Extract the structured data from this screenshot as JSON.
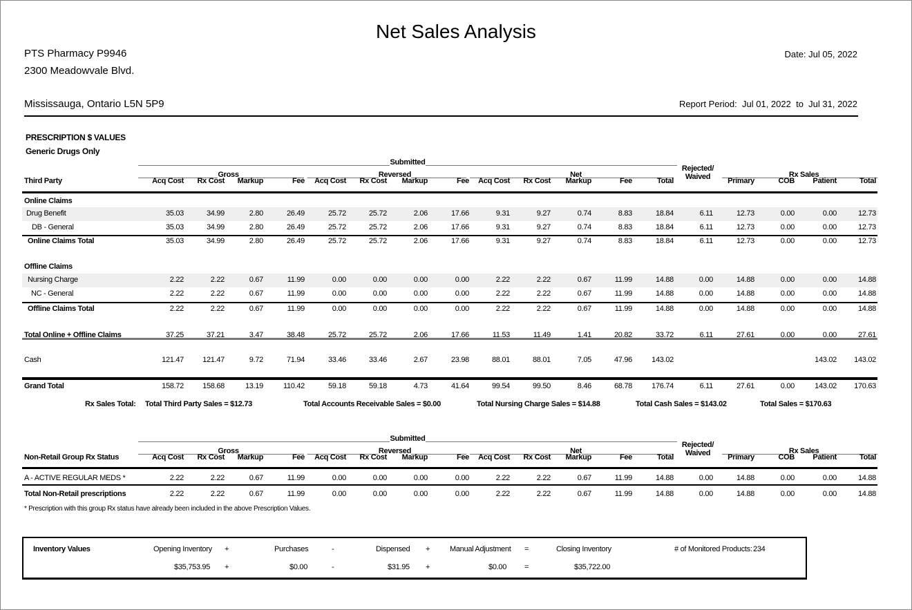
{
  "header": {
    "title": "Net Sales Analysis",
    "pharmacy": "PTS Pharmacy P9946",
    "address1": "2300 Meadowvale Blvd.",
    "address2": "Mississauga, Ontario L5N 5P9",
    "date": "Date: Jul 05, 2022",
    "period_label": "Report Period:",
    "period_from": "Jul 01, 2022",
    "period_to_word": "to",
    "period_to": "Jul 31, 2022"
  },
  "section": {
    "title": "PRESCRIPTION $ VALUES",
    "subtitle": "Generic Drugs Only"
  },
  "groups": {
    "submitted": "Submitted",
    "gross": "Gross",
    "reversed": "Reversed",
    "net": "Net",
    "rejected": "Rejected/",
    "waived": "Waived",
    "rx_sales": "Rx Sales"
  },
  "columns": [
    "Acq Cost",
    "Rx Cost",
    "Markup",
    "Fee",
    "Acq Cost",
    "Rx Cost",
    "Markup",
    "Fee",
    "Acq Cost",
    "Rx Cost",
    "Markup",
    "Fee",
    "Total",
    "",
    "Primary",
    "COB",
    "Patient",
    "Total"
  ],
  "table1": {
    "first_col": "Third Party",
    "rows": [
      {
        "label": "Online Claims",
        "values": []
      },
      {
        "label": "Drug Benefit",
        "values": [
          "35.03",
          "34.99",
          "2.80",
          "26.49",
          "25.72",
          "25.72",
          "2.06",
          "17.66",
          "9.31",
          "9.27",
          "0.74",
          "8.83",
          "18.84",
          "6.11",
          "12.73",
          "0.00",
          "0.00",
          "12.73"
        ]
      },
      {
        "label": "DB - General",
        "values": [
          "35.03",
          "34.99",
          "2.80",
          "26.49",
          "25.72",
          "25.72",
          "2.06",
          "17.66",
          "9.31",
          "9.27",
          "0.74",
          "8.83",
          "18.84",
          "6.11",
          "12.73",
          "0.00",
          "0.00",
          "12.73"
        ]
      },
      {
        "label": "Online Claims Total",
        "values": [
          "35.03",
          "34.99",
          "2.80",
          "26.49",
          "25.72",
          "25.72",
          "2.06",
          "17.66",
          "9.31",
          "9.27",
          "0.74",
          "8.83",
          "18.84",
          "6.11",
          "12.73",
          "0.00",
          "0.00",
          "12.73"
        ]
      },
      {
        "label": "Offline Claims",
        "values": []
      },
      {
        "label": "Nursing Charge",
        "values": [
          "2.22",
          "2.22",
          "0.67",
          "11.99",
          "0.00",
          "0.00",
          "0.00",
          "0.00",
          "2.22",
          "2.22",
          "0.67",
          "11.99",
          "14.88",
          "0.00",
          "14.88",
          "0.00",
          "0.00",
          "14.88"
        ]
      },
      {
        "label": "NC - General",
        "values": [
          "2.22",
          "2.22",
          "0.67",
          "11.99",
          "0.00",
          "0.00",
          "0.00",
          "0.00",
          "2.22",
          "2.22",
          "0.67",
          "11.99",
          "14.88",
          "0.00",
          "14.88",
          "0.00",
          "0.00",
          "14.88"
        ]
      },
      {
        "label": "Offline Claims Total",
        "values": [
          "2.22",
          "2.22",
          "0.67",
          "11.99",
          "0.00",
          "0.00",
          "0.00",
          "0.00",
          "2.22",
          "2.22",
          "0.67",
          "11.99",
          "14.88",
          "0.00",
          "14.88",
          "0.00",
          "0.00",
          "14.88"
        ]
      },
      {
        "label": "Total Online + Offline Claims",
        "values": [
          "37.25",
          "37.21",
          "3.47",
          "38.48",
          "25.72",
          "25.72",
          "2.06",
          "17.66",
          "11.53",
          "11.49",
          "1.41",
          "20.82",
          "33.72",
          "6.11",
          "27.61",
          "0.00",
          "0.00",
          "27.61"
        ]
      },
      {
        "label": "Cash",
        "values": [
          "121.47",
          "121.47",
          "9.72",
          "71.94",
          "33.46",
          "33.46",
          "2.67",
          "23.98",
          "88.01",
          "88.01",
          "7.05",
          "47.96",
          "143.02",
          "",
          "",
          "",
          "143.02",
          "143.02"
        ]
      },
      {
        "label": "Grand Total",
        "values": [
          "158.72",
          "158.68",
          "13.19",
          "110.42",
          "59.18",
          "59.18",
          "4.73",
          "41.64",
          "99.54",
          "99.50",
          "8.46",
          "68.78",
          "176.74",
          "6.11",
          "27.61",
          "0.00",
          "143.02",
          "170.63"
        ]
      }
    ]
  },
  "rx_sales_total": {
    "label": "Rx Sales Total:",
    "third_party": "Total Third Party Sales = $12.73",
    "accounts_receivable": "Total Accounts Receivable Sales = $0.00",
    "nursing": "Total Nursing Charge Sales = $14.88",
    "cash": "Total Cash Sales = $143.02",
    "total": "Total Sales = $170.63"
  },
  "table2": {
    "first_col": "Non-Retail Group Rx Status",
    "rows": [
      {
        "label": "A - ACTIVE REGULAR MEDS *",
        "values": [
          "2.22",
          "2.22",
          "0.67",
          "11.99",
          "0.00",
          "0.00",
          "0.00",
          "0.00",
          "2.22",
          "2.22",
          "0.67",
          "11.99",
          "14.88",
          "0.00",
          "14.88",
          "0.00",
          "0.00",
          "14.88"
        ]
      },
      {
        "label": "Total Non-Retail prescriptions",
        "values": [
          "2.22",
          "2.22",
          "0.67",
          "11.99",
          "0.00",
          "0.00",
          "0.00",
          "0.00",
          "2.22",
          "2.22",
          "0.67",
          "11.99",
          "14.88",
          "0.00",
          "14.88",
          "0.00",
          "0.00",
          "14.88"
        ]
      }
    ],
    "footnote": "* Prescription with this group Rx status have already been included in the above Prescription Values."
  },
  "inventory": {
    "label": "Inventory Values",
    "opening_label": "Opening Inventory",
    "purchases_label": "Purchases",
    "dispensed_label": "Dispensed",
    "adjustment_label": "Manual Adjustment",
    "closing_label": "Closing Inventory",
    "plus": "+",
    "minus": "-",
    "equals": "=",
    "opening": "$35,753.95",
    "purchases": "$0.00",
    "dispensed": "$31.95",
    "adjustment": "$0.00",
    "closing": "$35,722.00",
    "monitored_label": "# of Monitored Products:",
    "monitored": "234"
  }
}
